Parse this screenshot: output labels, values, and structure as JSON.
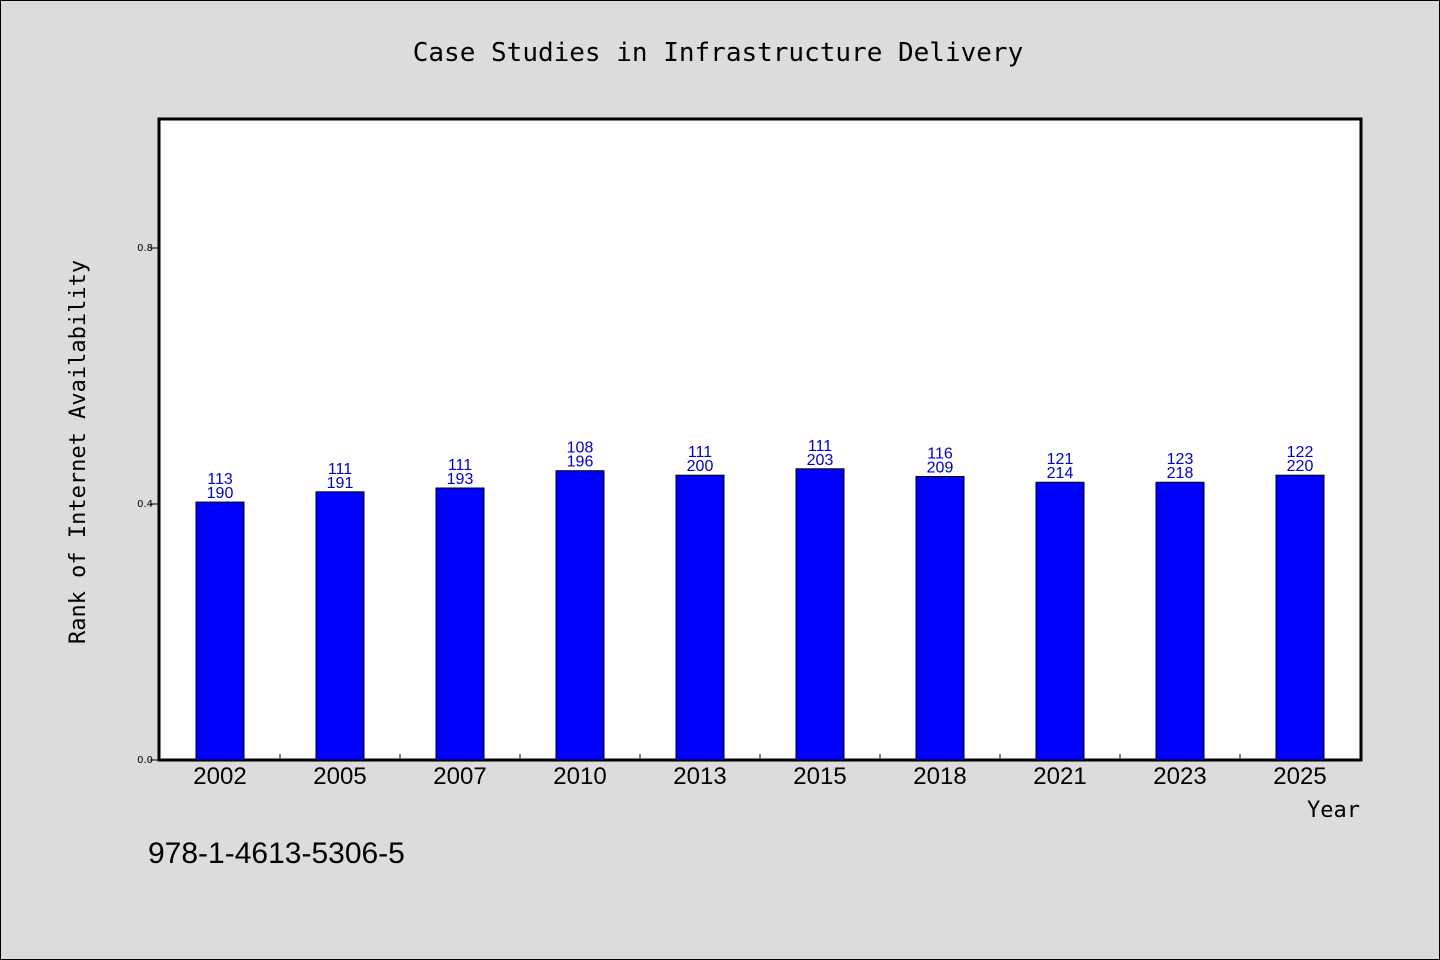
{
  "chart_data": {
    "type": "bar",
    "title": "Case Studies in Infrastructure Delivery",
    "xlabel": "Year",
    "ylabel": "Rank of Internet Availability",
    "categories": [
      "2002",
      "2005",
      "2007",
      "2010",
      "2013",
      "2015",
      "2018",
      "2021",
      "2023",
      "2025"
    ],
    "values": [
      0.403,
      0.419,
      0.425,
      0.452,
      0.445,
      0.455,
      0.443,
      0.434,
      0.434,
      0.445
    ],
    "data_labels_top": [
      "113",
      "111",
      "111",
      "108",
      "111",
      "111",
      "116",
      "121",
      "123",
      "122"
    ],
    "data_labels_bottom": [
      "190",
      "191",
      "193",
      "196",
      "200",
      "203",
      "209",
      "214",
      "218",
      "220"
    ],
    "yticks": [
      "0.0",
      "0.4",
      "0.8"
    ],
    "ylim": [
      0,
      1.0
    ],
    "grid": false,
    "legend": "none",
    "bar_color": "#0000ff",
    "label_color": "#0000cc"
  },
  "footer_note": "978-1-4613-5306-5"
}
